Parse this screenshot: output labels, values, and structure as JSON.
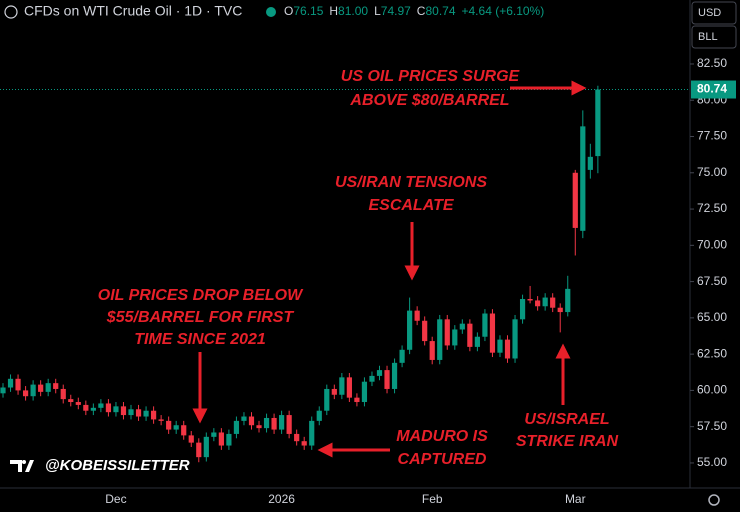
{
  "header": {
    "title": "CFDs on WTI Crude Oil · 1D · TVC",
    "ohlc": [
      {
        "key": "O",
        "value": "76.15"
      },
      {
        "key": "H",
        "value": "81.00"
      },
      {
        "key": "L",
        "value": "74.97"
      },
      {
        "key": "C",
        "value": "80.74"
      }
    ],
    "change": "+4.64 (+6.10%)",
    "currency": "USD",
    "unit": "BLL"
  },
  "watermark": "@KOBEISSILETTER",
  "annotations": [
    {
      "lines": [
        "US OIL PRICES SURGE",
        "ABOVE $80/BARREL"
      ]
    },
    {
      "lines": [
        "US/IRAN TENSIONS",
        "ESCALATE"
      ]
    },
    {
      "lines": [
        "OIL PRICES DROP BELOW",
        "$55/BARREL FOR FIRST",
        "TIME SINCE 2021"
      ]
    },
    {
      "lines": [
        "MADURO IS",
        "CAPTURED"
      ]
    },
    {
      "lines": [
        "US/ISRAEL",
        "STRIKE IRAN"
      ]
    }
  ],
  "chart_data": {
    "type": "candlestick",
    "up_color": "#089981",
    "down_color": "#f23645",
    "last_price": 80.74,
    "ylim": [
      53.48,
      86.91
    ],
    "yticks": [
      {
        "value": 55,
        "label": "55.00"
      },
      {
        "value": 57.5,
        "label": "57.50"
      },
      {
        "value": 60,
        "label": "60.00"
      },
      {
        "value": 62.5,
        "label": "62.50"
      },
      {
        "value": 65,
        "label": "65.00"
      },
      {
        "value": 67.5,
        "label": "67.50"
      },
      {
        "value": 70,
        "label": "70.00"
      },
      {
        "value": 72.5,
        "label": "72.50"
      },
      {
        "value": 75,
        "label": "75.00"
      },
      {
        "value": 77.5,
        "label": "77.50"
      },
      {
        "value": 80,
        "label": "80.00"
      },
      {
        "value": 82.5,
        "label": "82.50"
      }
    ],
    "categories": [
      null,
      null,
      null,
      null,
      null,
      null,
      null,
      null,
      null,
      null,
      null,
      null,
      null,
      null,
      null,
      "Dec",
      null,
      null,
      null,
      null,
      null,
      null,
      null,
      null,
      null,
      null,
      null,
      null,
      null,
      null,
      null,
      null,
      null,
      null,
      null,
      null,
      null,
      "2026",
      null,
      null,
      null,
      null,
      null,
      null,
      null,
      null,
      null,
      null,
      null,
      null,
      null,
      null,
      null,
      null,
      null,
      null,
      null,
      "Feb",
      null,
      null,
      null,
      null,
      null,
      null,
      null,
      null,
      null,
      null,
      null,
      null,
      null,
      null,
      null,
      null,
      null,
      null,
      "Mar",
      null,
      null,
      null
    ],
    "open": [
      59.8,
      60.2,
      60.8,
      60.0,
      59.6,
      60.4,
      59.9,
      60.5,
      60.1,
      59.4,
      59.2,
      59.0,
      58.6,
      58.8,
      59.1,
      58.5,
      58.9,
      58.3,
      58.7,
      58.2,
      58.6,
      58.0,
      57.9,
      57.3,
      57.6,
      56.9,
      56.4,
      55.4,
      56.8,
      57.1,
      56.2,
      57.0,
      57.9,
      58.2,
      57.6,
      57.4,
      58.1,
      57.3,
      58.3,
      57.0,
      56.5,
      56.2,
      57.9,
      58.6,
      60.1,
      59.7,
      60.9,
      59.5,
      59.2,
      60.6,
      61.0,
      61.4,
      60.1,
      61.9,
      62.8,
      65.5,
      64.8,
      63.4,
      62.1,
      64.9,
      63.1,
      64.2,
      64.6,
      63.0,
      63.7,
      65.3,
      62.6,
      63.5,
      62.2,
      64.9,
      66.3,
      66.2,
      65.8,
      66.4,
      65.7,
      65.4,
      75.0,
      71.0,
      75.2,
      76.15
    ],
    "high": [
      60.5,
      61.1,
      61.1,
      60.3,
      60.7,
      60.7,
      60.8,
      60.8,
      60.4,
      59.7,
      59.5,
      59.3,
      59.1,
      59.4,
      59.4,
      59.2,
      59.2,
      59.0,
      59.0,
      58.9,
      58.9,
      58.3,
      58.2,
      57.9,
      57.9,
      57.2,
      56.7,
      57.1,
      57.4,
      57.4,
      57.3,
      58.2,
      58.5,
      58.5,
      57.9,
      58.4,
      58.4,
      58.6,
      58.6,
      57.3,
      56.8,
      58.2,
      58.9,
      60.4,
      60.4,
      61.2,
      61.2,
      59.8,
      60.9,
      61.3,
      61.7,
      61.7,
      62.2,
      63.1,
      66.4,
      65.8,
      65.1,
      63.7,
      65.2,
      65.2,
      64.5,
      64.9,
      64.9,
      64.0,
      65.6,
      65.6,
      63.8,
      63.8,
      65.2,
      66.6,
      67.2,
      66.5,
      66.7,
      66.7,
      66.0,
      67.9,
      75.2,
      79.3,
      77.0,
      81.0
    ],
    "low": [
      59.5,
      59.9,
      59.7,
      59.3,
      59.3,
      59.6,
      59.6,
      59.8,
      59.1,
      58.9,
      58.7,
      58.3,
      58.3,
      58.5,
      58.2,
      58.2,
      58.0,
      58.0,
      57.9,
      57.9,
      57.7,
      57.6,
      57.0,
      57.0,
      56.6,
      56.1,
      55.05,
      55.1,
      56.5,
      55.9,
      55.9,
      56.7,
      57.6,
      57.3,
      57.1,
      57.1,
      57.0,
      57.0,
      56.7,
      56.2,
      55.9,
      55.9,
      57.6,
      58.3,
      59.4,
      59.4,
      59.2,
      58.9,
      58.9,
      60.3,
      60.7,
      59.8,
      59.8,
      61.6,
      62.5,
      64.5,
      63.1,
      61.8,
      61.8,
      62.8,
      62.8,
      63.9,
      62.7,
      62.7,
      63.4,
      62.3,
      62.3,
      61.9,
      61.9,
      64.6,
      66.0,
      65.5,
      65.5,
      65.4,
      64.0,
      65.1,
      69.3,
      70.5,
      74.6,
      74.97
    ],
    "close": [
      60.2,
      60.8,
      60.0,
      59.6,
      60.4,
      59.9,
      60.5,
      60.1,
      59.4,
      59.2,
      59.0,
      58.6,
      58.8,
      59.1,
      58.5,
      58.9,
      58.3,
      58.7,
      58.2,
      58.6,
      58.0,
      57.9,
      57.3,
      57.6,
      56.9,
      56.4,
      55.4,
      56.8,
      57.1,
      56.2,
      57.0,
      57.9,
      58.2,
      57.6,
      57.4,
      58.1,
      57.3,
      58.3,
      57.0,
      56.5,
      56.2,
      57.9,
      58.6,
      60.1,
      59.7,
      60.9,
      59.5,
      59.2,
      60.6,
      61.0,
      61.4,
      60.1,
      61.9,
      62.8,
      65.5,
      64.8,
      63.4,
      62.1,
      64.9,
      63.1,
      64.2,
      64.6,
      63.0,
      63.7,
      65.3,
      62.6,
      63.5,
      62.2,
      64.9,
      66.3,
      66.2,
      65.8,
      66.4,
      65.7,
      65.4,
      67.0,
      71.2,
      78.2,
      76.1,
      80.74
    ]
  }
}
